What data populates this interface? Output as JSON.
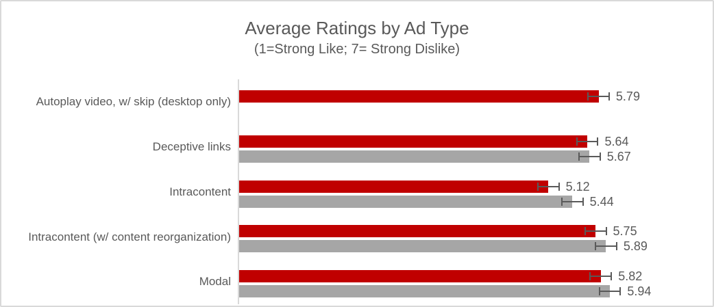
{
  "chart_data": {
    "type": "bar",
    "orientation": "horizontal",
    "title": "Average Ratings by Ad Type",
    "subtitle": "(1=Strong Like; 7= Strong Dislike)",
    "axis": {
      "min": 1,
      "max": 7,
      "gridlines": false,
      "value_axis_labels_visible": false
    },
    "legend": "none",
    "colors": {
      "red_bar": "#C00000",
      "gray_bar": "#A6A6A6",
      "error_bar": "#595959",
      "axis_line": "#D9D9D9",
      "text": "#595959",
      "background": "#FFFFFF",
      "border": "#D9D9D9"
    },
    "rows": [
      {
        "category": "Autoplay video, w/ skip (desktop only)",
        "red": {
          "value": 5.79,
          "error": 0.15,
          "label": "5.79"
        },
        "gray": null
      },
      {
        "category": "Deceptive links",
        "red": {
          "value": 5.64,
          "error": 0.15,
          "label": "5.64"
        },
        "gray": {
          "value": 5.67,
          "error": 0.15,
          "label": "5.67"
        }
      },
      {
        "category": "Intracontent",
        "red": {
          "value": 5.12,
          "error": 0.15,
          "label": "5.12"
        },
        "gray": {
          "value": 5.44,
          "error": 0.15,
          "label": "5.44"
        }
      },
      {
        "category": "Intracontent (w/ content reorganization)",
        "red": {
          "value": 5.75,
          "error": 0.15,
          "label": "5.75"
        },
        "gray": {
          "value": 5.89,
          "error": 0.15,
          "label": "5.89"
        }
      },
      {
        "category": "Modal",
        "red": {
          "value": 5.82,
          "error": 0.15,
          "label": "5.82"
        },
        "gray": {
          "value": 5.94,
          "error": 0.15,
          "label": "5.94"
        }
      }
    ]
  }
}
